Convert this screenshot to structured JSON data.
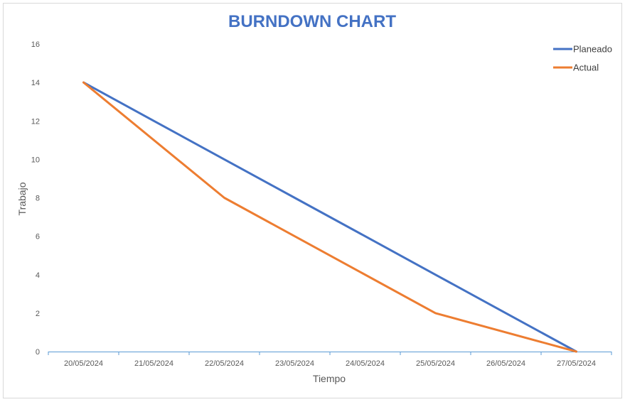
{
  "chart_data": {
    "type": "line",
    "title": "BURNDOWN CHART",
    "xlabel": "Tiempo",
    "ylabel": "Trabajo",
    "categories": [
      "20/05/2024",
      "21/05/2024",
      "22/05/2024",
      "23/05/2024",
      "24/05/2024",
      "25/05/2024",
      "26/05/2024",
      "27/05/2024"
    ],
    "ylim": [
      0,
      16
    ],
    "yticks": [
      0,
      2,
      4,
      6,
      8,
      10,
      12,
      14,
      16
    ],
    "grid": false,
    "legend_position": "top-right",
    "series": [
      {
        "name": "Planeado",
        "color": "#4472c4",
        "values": [
          14,
          12,
          10,
          8,
          6,
          4,
          2,
          0
        ]
      },
      {
        "name": "Actual",
        "color": "#ed7d31",
        "values": [
          14,
          null,
          8,
          null,
          null,
          2,
          null,
          0
        ]
      }
    ]
  }
}
